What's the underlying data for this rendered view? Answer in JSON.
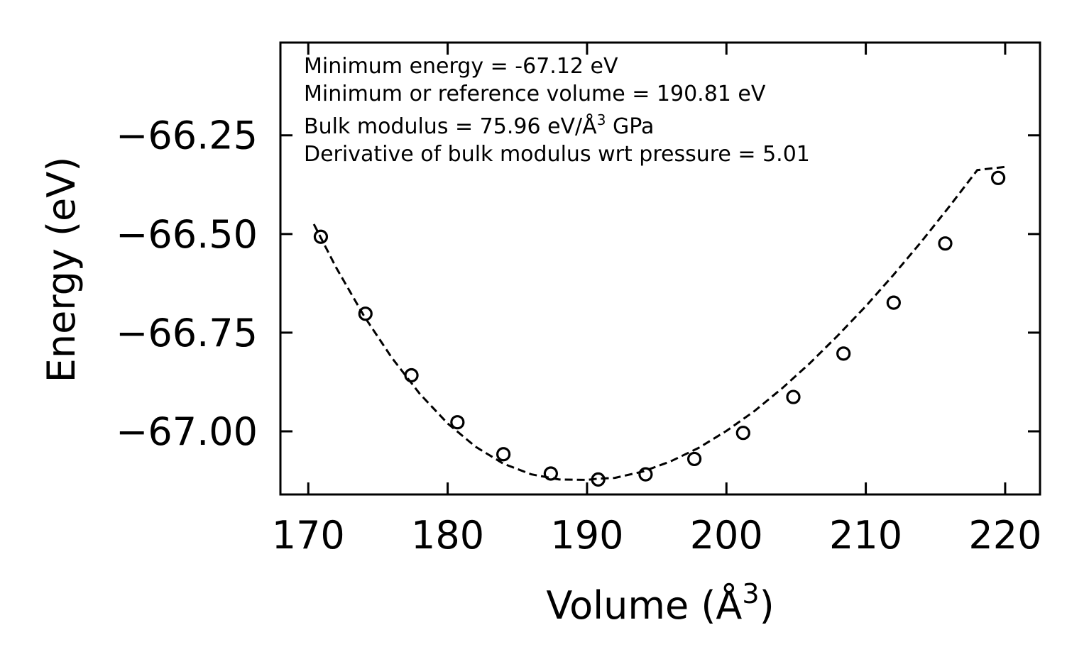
{
  "chart_data": {
    "type": "scatter",
    "title": "",
    "xlabel": "Volume (Å",
    "xlabel_sup": "3",
    "xlabel_end": ")",
    "ylabel": "Energy (eV)",
    "xlim": [
      168,
      222.5
    ],
    "ylim": [
      -67.16,
      -66.015
    ],
    "xticks": [
      170,
      180,
      190,
      200,
      210,
      220
    ],
    "xtick_labels": [
      "170",
      "180",
      "190",
      "200",
      "210",
      "220"
    ],
    "yticks": [
      -66.25,
      -66.5,
      -66.75,
      -67.0
    ],
    "ytick_labels": [
      "−66.25",
      "−66.50",
      "−66.75",
      "−67.00"
    ],
    "grid": false,
    "series": [
      {
        "name": "calculated points",
        "style": "open-circle",
        "x": [
          170.9,
          174.1,
          177.4,
          180.7,
          184.0,
          187.4,
          190.8,
          194.2,
          197.7,
          201.2,
          204.8,
          208.4,
          212.0,
          215.7,
          219.5
        ],
        "y": [
          -66.507,
          -66.702,
          -66.858,
          -66.977,
          -67.058,
          -67.107,
          -67.122,
          -67.109,
          -67.07,
          -67.004,
          -66.913,
          -66.803,
          -66.674,
          -66.524,
          -66.358
        ]
      },
      {
        "name": "fit",
        "style": "dashed-line",
        "x": [
          170.4,
          172,
          174,
          176,
          178,
          180,
          182,
          184,
          186,
          188,
          190,
          190.81,
          192,
          194,
          196,
          198,
          200,
          202,
          204,
          206,
          208,
          210,
          212,
          214,
          216,
          218,
          220
        ],
        "y": [
          -66.475,
          -66.585,
          -66.708,
          -66.814,
          -66.905,
          -66.98,
          -67.039,
          -67.082,
          -67.109,
          -67.122,
          -67.123,
          -67.12,
          -67.118,
          -67.102,
          -67.076,
          -67.042,
          -66.999,
          -66.949,
          -66.891,
          -66.827,
          -66.757,
          -66.683,
          -66.603,
          -66.519,
          -66.43,
          -66.338,
          -66.33
        ]
      }
    ],
    "annotations": {
      "line1": "Minimum energy = -67.12 eV",
      "line2": "Minimum or reference volume = 190.81 eV",
      "line3a": "Bulk modulus = 75.96 eV/Å",
      "line3sup": "3",
      "line3b": " GPa",
      "line4": "Derivative of bulk modulus wrt pressure = 5.01"
    }
  }
}
